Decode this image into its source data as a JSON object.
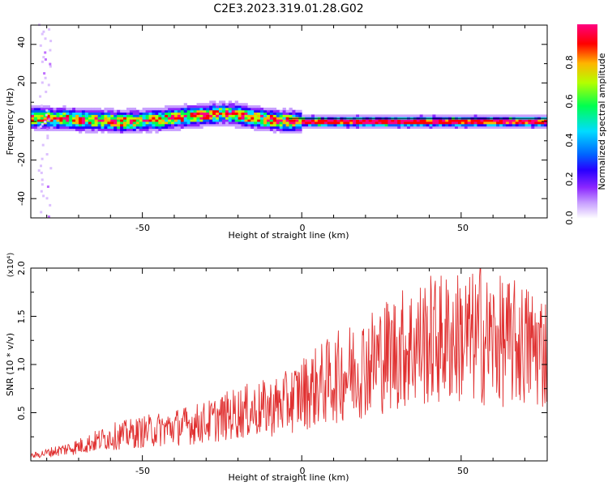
{
  "title": "C2E3.2023.319.01.28.G02",
  "chart_data": [
    {
      "type": "heatmap",
      "xlabel": "Height of straight line (km)",
      "ylabel": "Frequency (Hz)",
      "xlim": [
        -85,
        77
      ],
      "ylim": [
        -50,
        50
      ],
      "xticks": [
        "-50",
        "0",
        "50"
      ],
      "yticks": [
        "-40",
        "-20",
        "0",
        "20",
        "40"
      ],
      "colorbar": {
        "label": "Normalized spectral amplitude",
        "ticks": [
          "0.0",
          "0.2",
          "0.4",
          "0.6",
          "0.8"
        ],
        "range": [
          0,
          1
        ],
        "colors": [
          "#ffffff",
          "#c8a0ff",
          "#8c28ff",
          "#2800ff",
          "#0064ff",
          "#00dcff",
          "#00ff50",
          "#b4ff00",
          "#ffb400",
          "#ff0000",
          "#ff0080"
        ]
      },
      "ridge": [
        [
          -85,
          2
        ],
        [
          -75,
          1.5
        ],
        [
          -65,
          0.8
        ],
        [
          -55,
          0
        ],
        [
          -50,
          0.5
        ],
        [
          -45,
          1
        ],
        [
          -40,
          2
        ],
        [
          -30,
          3.5
        ],
        [
          -25,
          4.5
        ],
        [
          -20,
          3.5
        ],
        [
          -15,
          2
        ],
        [
          -10,
          1
        ],
        [
          -5,
          0.3
        ],
        [
          0,
          0
        ],
        [
          77,
          0
        ]
      ],
      "grid": false
    },
    {
      "type": "line",
      "xlabel": "Height of straight line (km)",
      "ylabel": "SNR (10 * v/v)",
      "y_multiplier": "(x10⁴)",
      "xlim": [
        -85,
        77
      ],
      "ylim": [
        0,
        20000
      ],
      "xticks": [
        "-50",
        "0",
        "50"
      ],
      "yticks": [
        "0.5",
        "1.0",
        "1.5",
        "2.0"
      ],
      "series": [
        {
          "color": "#e03030",
          "trend": [
            [
              -85,
              500
            ],
            [
              -70,
              1500
            ],
            [
              -60,
              2500
            ],
            [
              -50,
              3000
            ],
            [
              -40,
              3500
            ],
            [
              -30,
              4000
            ],
            [
              -20,
              5000
            ],
            [
              -10,
              5500
            ],
            [
              -5,
              6000
            ],
            [
              0,
              7000
            ],
            [
              10,
              8500
            ],
            [
              20,
              10000
            ],
            [
              30,
              11500
            ],
            [
              40,
              12500
            ],
            [
              50,
              12800
            ],
            [
              60,
              12500
            ],
            [
              70,
              12000
            ],
            [
              77,
              11500
            ]
          ],
          "peak": [
            56,
            20000
          ]
        }
      ],
      "grid": false
    }
  ]
}
